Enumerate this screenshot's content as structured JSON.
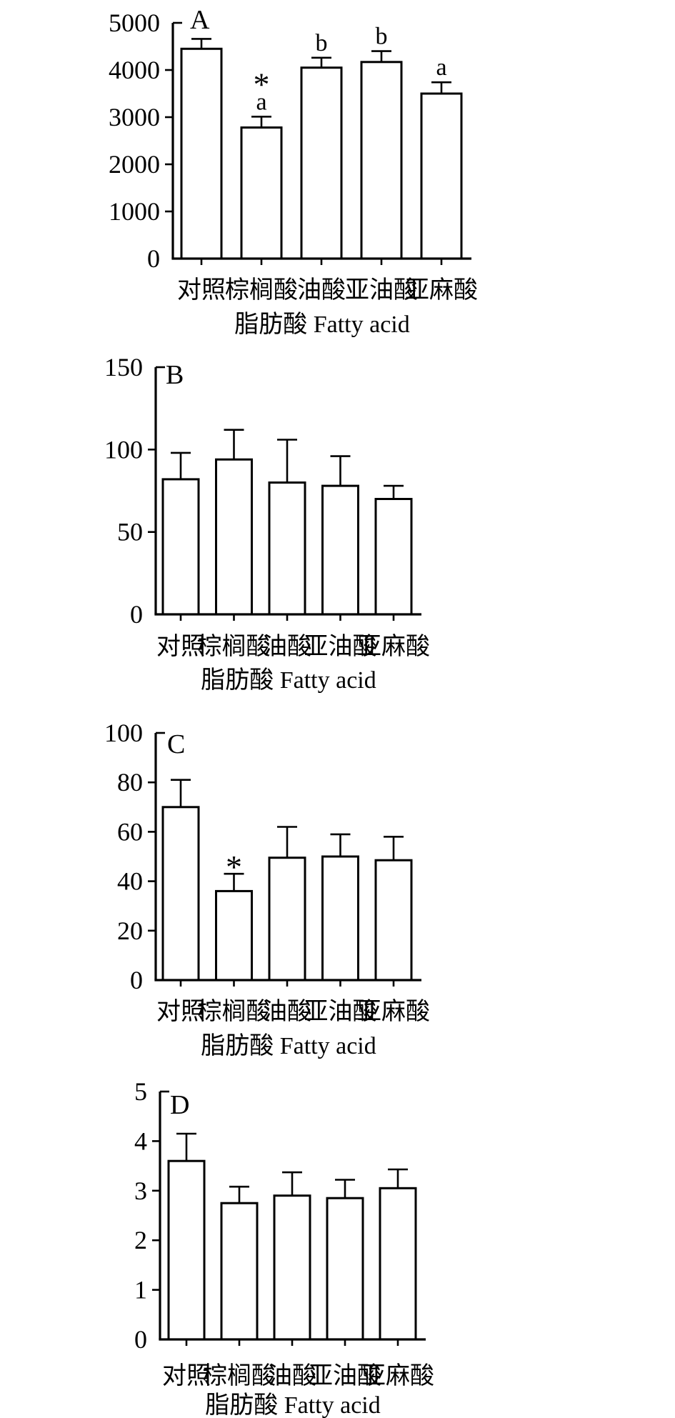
{
  "figure": {
    "panels": [
      "A",
      "B",
      "C",
      "D"
    ],
    "categories": [
      "对照",
      "棕榈酸",
      "油酸",
      "亚油酸",
      "亚麻酸"
    ],
    "xlabel": "脂肪酸  Fatty acid",
    "ink_color": "#000000",
    "background_color": "#ffffff"
  },
  "chart_data": [
    {
      "type": "bar",
      "panel_label": "A",
      "categories": [
        "对照",
        "棕榈酸",
        "油酸",
        "亚油酸",
        "亚麻酸"
      ],
      "values": [
        4450,
        2780,
        4050,
        4170,
        3500
      ],
      "errors_up": [
        210,
        230,
        210,
        230,
        240
      ],
      "annotations": [
        [],
        [
          "*",
          "a"
        ],
        [
          "b"
        ],
        [
          "b"
        ],
        [
          "a"
        ]
      ],
      "xlabel": "脂肪酸  Fatty acid",
      "ylabel": "",
      "ylim": [
        0,
        5000
      ],
      "yticks": [
        0,
        1000,
        2000,
        3000,
        4000,
        5000
      ],
      "ytick_labels": [
        "0",
        "1000",
        "2000",
        "3000",
        "4000",
        "5000"
      ],
      "grid": false,
      "bar_fill": "#ffffff",
      "bar_stroke": "#000000"
    },
    {
      "type": "bar",
      "panel_label": "B",
      "categories": [
        "对照",
        "棕榈酸",
        "油酸",
        "亚油酸",
        "亚麻酸"
      ],
      "values": [
        82,
        94,
        80,
        78,
        70
      ],
      "errors_up": [
        16,
        18,
        26,
        18,
        8
      ],
      "annotations": [
        [],
        [],
        [],
        [],
        []
      ],
      "xlabel": "脂肪酸  Fatty acid",
      "ylabel": "",
      "ylim": [
        0,
        150
      ],
      "yticks": [
        0,
        50,
        100,
        150
      ],
      "ytick_labels": [
        "0",
        "50",
        "100",
        "150"
      ],
      "grid": false,
      "bar_fill": "#ffffff",
      "bar_stroke": "#000000"
    },
    {
      "type": "bar",
      "panel_label": "C",
      "categories": [
        "对照",
        "棕榈酸",
        "油酸",
        "亚油酸",
        "亚麻酸"
      ],
      "values": [
        70,
        36,
        49.5,
        50,
        48.5
      ],
      "errors_up": [
        11,
        7,
        12.5,
        9,
        9.5
      ],
      "annotations": [
        [],
        [
          "*"
        ],
        [],
        [],
        []
      ],
      "xlabel": "脂肪酸  Fatty acid",
      "ylabel": "",
      "ylim": [
        0,
        100
      ],
      "yticks": [
        0,
        20,
        40,
        60,
        80,
        100
      ],
      "ytick_labels": [
        "0",
        "20",
        "40",
        "60",
        "80",
        "100"
      ],
      "grid": false,
      "bar_fill": "#ffffff",
      "bar_stroke": "#000000"
    },
    {
      "type": "bar",
      "panel_label": "D",
      "categories": [
        "对照",
        "棕榈酸",
        "油酸",
        "亚油酸",
        "亚麻酸"
      ],
      "values": [
        3.6,
        2.75,
        2.9,
        2.85,
        3.05
      ],
      "errors_up": [
        0.55,
        0.33,
        0.47,
        0.37,
        0.38
      ],
      "annotations": [
        [],
        [],
        [],
        [],
        []
      ],
      "xlabel": "脂肪酸  Fatty acid",
      "ylabel": "",
      "ylim": [
        0,
        5
      ],
      "yticks": [
        0,
        1,
        2,
        3,
        4,
        5
      ],
      "ytick_labels": [
        "0",
        "1",
        "2",
        "3",
        "4",
        "5"
      ],
      "grid": false,
      "bar_fill": "#ffffff",
      "bar_stroke": "#000000"
    }
  ]
}
